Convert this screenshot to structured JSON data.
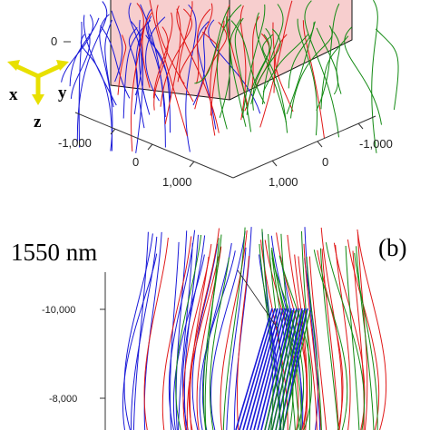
{
  "panel_a": {
    "tick_z_zero": "0",
    "tick_x_neg": "-1,000",
    "tick_x_zero": "0",
    "tick_x_pos": "1,000",
    "tick_y_neg": "-1,000",
    "tick_y_zero": "0",
    "tick_y_pos": "1,000",
    "axis_x": "x",
    "axis_y": "y",
    "axis_z": "z",
    "arrow_color": "#e8e000",
    "box_fill": "#f6c6c6"
  },
  "panel_b": {
    "wavelength_label": "1550 nm",
    "panel_label": "(b)",
    "tick_top": "-10,000",
    "tick_bottom": "-8,000"
  },
  "colors": {
    "blue": "#1a1ad8",
    "red": "#e01818",
    "green": "#138a13"
  }
}
